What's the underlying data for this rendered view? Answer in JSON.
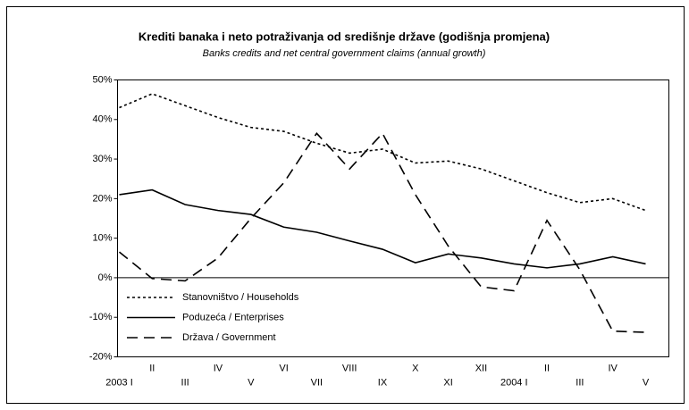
{
  "chart_data": {
    "type": "line",
    "title": "Krediti banaka i neto potraživanja od središnje države (godišnja promjena)",
    "subtitle": "Banks credits and net central government claims (annual growth)",
    "categories": [
      "2003 I",
      "II",
      "III",
      "IV",
      "V",
      "VI",
      "VII",
      "VIII",
      "IX",
      "X",
      "XI",
      "XII",
      "2004 I",
      "II",
      "III",
      "IV",
      "V"
    ],
    "series": [
      {
        "name": "Stanovništvo / Households",
        "color": "#000000",
        "dash": "dotted",
        "values": [
          43,
          46.5,
          43.5,
          40.5,
          38,
          37,
          34,
          31.5,
          32.5,
          29,
          29.5,
          27.5,
          24.5,
          21.5,
          19,
          20,
          17
        ]
      },
      {
        "name": "Poduzeća / Enterprises",
        "color": "#000000",
        "dash": "solid",
        "values": [
          21,
          22.2,
          18.5,
          17,
          16,
          12.8,
          11.5,
          9.3,
          7.2,
          3.8,
          6,
          5,
          3.5,
          2.5,
          3.5,
          5.3,
          3.5
        ]
      },
      {
        "name": "Država / Government",
        "color": "#000000",
        "dash": "dashed",
        "values": [
          6.5,
          -0.2,
          -0.8,
          5,
          15,
          24,
          36.5,
          27.5,
          36.5,
          21,
          8,
          -2.3,
          -3.3,
          14.5,
          2,
          -13.5,
          -13.8
        ]
      }
    ],
    "ylim": [
      -20,
      50
    ],
    "yticks": [
      {
        "value": -20,
        "label": "-20%"
      },
      {
        "value": -10,
        "label": "-10%"
      },
      {
        "value": 0,
        "label": "0%"
      },
      {
        "value": 10,
        "label": "10%"
      },
      {
        "value": 20,
        "label": "20%"
      },
      {
        "value": 30,
        "label": "30%"
      },
      {
        "value": 40,
        "label": "40%"
      },
      {
        "value": 50,
        "label": "50%"
      }
    ],
    "legend": "lower-left",
    "grid": false
  }
}
